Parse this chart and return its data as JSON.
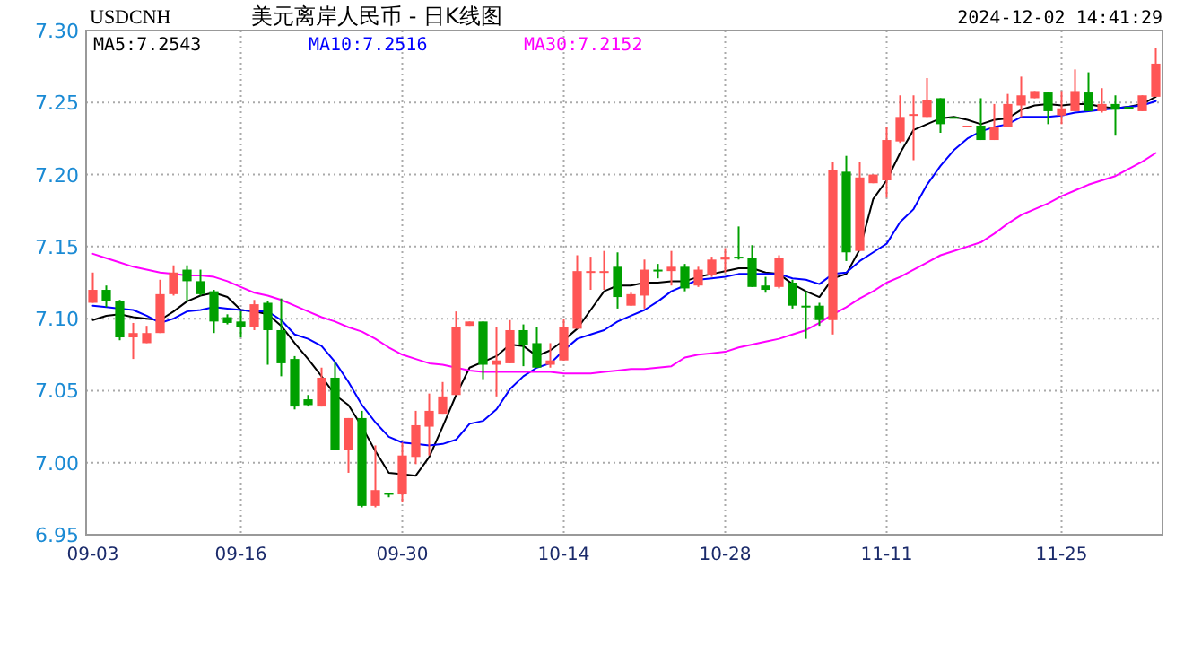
{
  "chart_data": {
    "type": "candlestick",
    "title": "美元离岸人民币 - 日K线图",
    "subtitle": "USDCNH",
    "annotations": [
      "2024-12-02 14:41:29"
    ],
    "categories": [
      "09-03",
      null,
      null,
      null,
      null,
      null,
      null,
      null,
      null,
      null,
      null,
      "09-16",
      null,
      null,
      null,
      null,
      null,
      null,
      null,
      null,
      null,
      null,
      null,
      "09-30",
      null,
      null,
      null,
      null,
      null,
      null,
      null,
      null,
      null,
      null,
      null,
      "10-14",
      null,
      null,
      null,
      null,
      null,
      null,
      null,
      null,
      null,
      null,
      null,
      "10-28",
      null,
      null,
      null,
      null,
      null,
      null,
      null,
      null,
      null,
      null,
      null,
      "11-11",
      null,
      null,
      null,
      null,
      null,
      null,
      null,
      null,
      null,
      null,
      null,
      null,
      "11-25",
      null,
      null,
      null,
      null,
      null,
      null,
      null
    ],
    "ohlc": [
      [
        7.111,
        7.132,
        7.111,
        7.12
      ],
      [
        7.12,
        7.123,
        7.108,
        7.112
      ],
      [
        7.112,
        7.113,
        7.085,
        7.087
      ],
      [
        7.087,
        7.097,
        7.072,
        7.09
      ],
      [
        7.083,
        7.095,
        7.083,
        7.09
      ],
      [
        7.09,
        7.127,
        7.09,
        7.117
      ],
      [
        7.117,
        7.137,
        7.116,
        7.132
      ],
      [
        7.134,
        7.137,
        7.112,
        7.126
      ],
      [
        7.126,
        7.134,
        7.116,
        7.117
      ],
      [
        7.119,
        7.12,
        7.09,
        7.098
      ],
      [
        7.101,
        7.103,
        7.096,
        7.097
      ],
      [
        7.098,
        7.105,
        7.087,
        7.094
      ],
      [
        7.094,
        7.113,
        7.092,
        7.11
      ],
      [
        7.111,
        7.112,
        7.068,
        7.092
      ],
      [
        7.092,
        7.114,
        7.06,
        7.069
      ],
      [
        7.072,
        7.074,
        7.037,
        7.039
      ],
      [
        7.044,
        7.047,
        7.039,
        7.04
      ],
      [
        7.039,
        7.066,
        7.039,
        7.059
      ],
      [
        7.059,
        7.07,
        7.009,
        7.009
      ],
      [
        7.009,
        7.031,
        6.993,
        7.031
      ],
      [
        7.031,
        7.036,
        6.969,
        6.97
      ],
      [
        6.97,
        7.012,
        6.969,
        6.981
      ],
      [
        6.979,
        6.979,
        6.976,
        6.978
      ],
      [
        6.978,
        7.014,
        6.973,
        7.005
      ],
      [
        7.004,
        7.036,
        6.999,
        7.026
      ],
      [
        7.025,
        7.048,
        7.005,
        7.036
      ],
      [
        7.034,
        7.056,
        7.034,
        7.046
      ],
      [
        7.047,
        7.105,
        7.047,
        7.094
      ],
      [
        7.095,
        7.098,
        7.095,
        7.098
      ],
      [
        7.098,
        7.098,
        7.058,
        7.068
      ],
      [
        7.068,
        7.094,
        7.046,
        7.071
      ],
      [
        7.069,
        7.099,
        7.069,
        7.092
      ],
      [
        7.092,
        7.096,
        7.067,
        7.082
      ],
      [
        7.083,
        7.094,
        7.066,
        7.066
      ],
      [
        7.068,
        7.083,
        7.066,
        7.071
      ],
      [
        7.071,
        7.1,
        7.071,
        7.094
      ],
      [
        7.093,
        7.144,
        7.093,
        7.133
      ],
      [
        7.132,
        7.143,
        7.12,
        7.133
      ],
      [
        7.132,
        7.147,
        7.12,
        7.133
      ],
      [
        7.136,
        7.146,
        7.107,
        7.115
      ],
      [
        7.109,
        7.118,
        7.109,
        7.117
      ],
      [
        7.116,
        7.141,
        7.107,
        7.134
      ],
      [
        7.134,
        7.138,
        7.128,
        7.133
      ],
      [
        7.133,
        7.147,
        7.123,
        7.136
      ],
      [
        7.136,
        7.138,
        7.119,
        7.121
      ],
      [
        7.123,
        7.136,
        7.122,
        7.134
      ],
      [
        7.13,
        7.143,
        7.129,
        7.141
      ],
      [
        7.141,
        7.149,
        7.132,
        7.143
      ],
      [
        7.143,
        7.164,
        7.141,
        7.142
      ],
      [
        7.142,
        7.151,
        7.122,
        7.122
      ],
      [
        7.123,
        7.129,
        7.118,
        7.12
      ],
      [
        7.122,
        7.144,
        7.121,
        7.142
      ],
      [
        7.125,
        7.127,
        7.107,
        7.109
      ],
      [
        7.109,
        7.119,
        7.086,
        7.108
      ],
      [
        7.109,
        7.111,
        7.095,
        7.099
      ],
      [
        7.099,
        7.209,
        7.089,
        7.203
      ],
      [
        7.202,
        7.213,
        7.14,
        7.146
      ],
      [
        7.147,
        7.209,
        7.147,
        7.198
      ],
      [
        7.194,
        7.2,
        7.194,
        7.2
      ],
      [
        7.196,
        7.233,
        7.184,
        7.224
      ],
      [
        7.223,
        7.255,
        7.222,
        7.24
      ],
      [
        7.241,
        7.255,
        7.21,
        7.242
      ],
      [
        7.24,
        7.267,
        7.24,
        7.252
      ],
      [
        7.253,
        7.253,
        7.229,
        7.235
      ],
      [
        7.24,
        7.24,
        7.239,
        7.239
      ],
      [
        7.233,
        7.234,
        7.233,
        7.234
      ],
      [
        7.234,
        7.253,
        7.224,
        7.224
      ],
      [
        7.224,
        7.249,
        7.224,
        7.233
      ],
      [
        7.233,
        7.256,
        7.233,
        7.249
      ],
      [
        7.248,
        7.268,
        7.24,
        7.255
      ],
      [
        7.253,
        7.258,
        7.253,
        7.258
      ],
      [
        7.257,
        7.257,
        7.235,
        7.244
      ],
      [
        7.241,
        7.258,
        7.235,
        7.246
      ],
      [
        7.244,
        7.273,
        7.244,
        7.258
      ],
      [
        7.257,
        7.271,
        7.244,
        7.244
      ],
      [
        7.244,
        7.26,
        7.243,
        7.249
      ],
      [
        7.249,
        7.255,
        7.227,
        7.245
      ],
      [
        7.247,
        7.247,
        7.246,
        7.246
      ],
      [
        7.244,
        7.255,
        7.244,
        7.255
      ],
      [
        7.254,
        7.288,
        7.254,
        7.277
      ]
    ],
    "colors": [
      "#ff5555",
      "#00a000",
      "#00a000",
      "#ff5555",
      "#ff5555",
      "#ff5555",
      "#ff5555",
      "#00a000",
      "#00a000",
      "#00a000",
      "#00a000",
      "#00a000",
      "#ff5555",
      "#00a000",
      "#00a000",
      "#00a000",
      "#00a000",
      "#ff5555",
      "#00a000",
      "#ff5555",
      "#00a000",
      "#ff5555",
      "#00a000",
      "#ff5555",
      "#ff5555",
      "#ff5555",
      "#ff5555",
      "#ff5555",
      "#ff5555",
      "#00a000",
      "#ff5555",
      "#ff5555",
      "#00a000",
      "#00a000",
      "#ff5555",
      "#ff5555",
      "#ff5555",
      "#ff5555",
      "#ff5555",
      "#00a000",
      "#ff5555",
      "#ff5555",
      "#00a000",
      "#ff5555",
      "#00a000",
      "#ff5555",
      "#ff5555",
      "#ff5555",
      "#00a000",
      "#00a000",
      "#00a000",
      "#ff5555",
      "#00a000",
      "#00a000",
      "#00a000",
      "#ff5555",
      "#00a000",
      "#ff5555",
      "#ff5555",
      "#ff5555",
      "#ff5555",
      "#ff5555",
      "#ff5555",
      "#00a000",
      "#00a000",
      "#ff5555",
      "#00a000",
      "#ff5555",
      "#ff5555",
      "#ff5555",
      "#ff5555",
      "#00a000",
      "#ff5555",
      "#ff5555",
      "#00a000",
      "#ff5555",
      "#00a000",
      "#00a000",
      "#ff5555",
      "#ff5555"
    ],
    "series": [
      {
        "type": "line",
        "name": "MA5:7.2543",
        "color": "#000000",
        "values": [
          7.099,
          7.102,
          7.103,
          7.101,
          7.1,
          7.099,
          7.105,
          7.112,
          7.116,
          7.118,
          7.115,
          7.106,
          7.105,
          7.103,
          7.095,
          7.083,
          7.072,
          7.06,
          7.047,
          7.04,
          7.025,
          7.008,
          6.993,
          6.992,
          6.991,
          7.004,
          7.025,
          7.047,
          7.066,
          7.07,
          7.074,
          7.082,
          7.081,
          7.074,
          7.078,
          7.085,
          7.093,
          7.106,
          7.119,
          7.123,
          7.123,
          7.125,
          7.125,
          7.126,
          7.126,
          7.129,
          7.131,
          7.133,
          7.135,
          7.135,
          7.132,
          7.131,
          7.124,
          7.119,
          7.115,
          7.128,
          7.131,
          7.148,
          7.183,
          7.196,
          7.215,
          7.231,
          7.235,
          7.239,
          7.24,
          7.238,
          7.235,
          7.238,
          7.239,
          7.245,
          7.248,
          7.249,
          7.248,
          7.249,
          7.249,
          7.247,
          7.246,
          7.247,
          7.249,
          7.254
        ]
      },
      {
        "type": "line",
        "name": "MA10:7.2516",
        "color": "#0000ff",
        "values": [
          7.109,
          7.108,
          7.107,
          7.106,
          7.102,
          7.097,
          7.1,
          7.105,
          7.106,
          7.108,
          7.107,
          7.106,
          7.105,
          7.105,
          7.099,
          7.089,
          7.086,
          7.081,
          7.07,
          7.056,
          7.04,
          7.028,
          7.018,
          7.014,
          7.013,
          7.012,
          7.013,
          7.016,
          7.027,
          7.029,
          7.037,
          7.051,
          7.06,
          7.066,
          7.069,
          7.078,
          7.086,
          7.089,
          7.092,
          7.098,
          7.102,
          7.106,
          7.112,
          7.119,
          7.123,
          7.127,
          7.128,
          7.129,
          7.131,
          7.131,
          7.131,
          7.131,
          7.128,
          7.127,
          7.124,
          7.131,
          7.132,
          7.14,
          7.146,
          7.152,
          7.167,
          7.176,
          7.193,
          7.206,
          7.217,
          7.225,
          7.23,
          7.233,
          7.235,
          7.24,
          7.24,
          7.24,
          7.241,
          7.243,
          7.244,
          7.245,
          7.246,
          7.247,
          7.248,
          7.251
        ]
      },
      {
        "type": "line",
        "name": "MA30:7.2152",
        "color": "#ff00ff",
        "values": [
          7.145,
          7.142,
          7.139,
          7.136,
          7.134,
          7.132,
          7.131,
          7.13,
          7.13,
          7.129,
          7.126,
          7.122,
          7.118,
          7.116,
          7.113,
          7.109,
          7.105,
          7.101,
          7.098,
          7.094,
          7.091,
          7.086,
          7.08,
          7.075,
          7.072,
          7.069,
          7.068,
          7.066,
          7.064,
          7.063,
          7.063,
          7.063,
          7.063,
          7.063,
          7.063,
          7.062,
          7.062,
          7.062,
          7.063,
          7.064,
          7.065,
          7.065,
          7.066,
          7.067,
          7.073,
          7.075,
          7.076,
          7.077,
          7.08,
          7.082,
          7.084,
          7.086,
          7.089,
          7.092,
          7.097,
          7.103,
          7.108,
          7.114,
          7.119,
          7.125,
          7.129,
          7.134,
          7.139,
          7.144,
          7.147,
          7.15,
          7.153,
          7.159,
          7.166,
          7.172,
          7.176,
          7.18,
          7.185,
          7.189,
          7.193,
          7.196,
          7.199,
          7.204,
          7.209,
          7.215
        ]
      }
    ],
    "ylim": [
      6.95,
      7.3
    ],
    "yticks": [
      {
        "value": 6.95,
        "label": "6.95"
      },
      {
        "value": 7.0,
        "label": "7.00"
      },
      {
        "value": 7.05,
        "label": "7.05"
      },
      {
        "value": 7.1,
        "label": "7.10"
      },
      {
        "value": 7.15,
        "label": "7.15"
      },
      {
        "value": 7.2,
        "label": "7.20"
      },
      {
        "value": 7.25,
        "label": "7.25"
      },
      {
        "value": 7.3,
        "label": "7.30"
      }
    ],
    "grid": true,
    "legend": "top left"
  }
}
